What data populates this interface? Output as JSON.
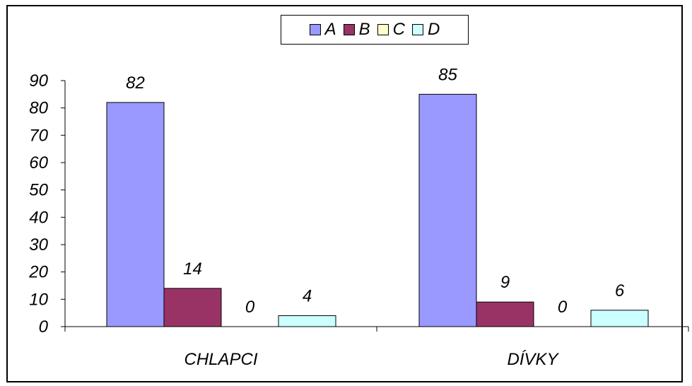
{
  "chart_data": {
    "type": "bar",
    "categories": [
      "CHLAPCI",
      "DÍVKY"
    ],
    "series": [
      {
        "name": "A",
        "values": [
          82,
          85
        ],
        "color": "#9999ff"
      },
      {
        "name": "B",
        "values": [
          14,
          9
        ],
        "color": "#993366"
      },
      {
        "name": "C",
        "values": [
          0,
          0
        ],
        "color": "#ffffcc"
      },
      {
        "name": "D",
        "values": [
          4,
          6
        ],
        "color": "#ccffff"
      }
    ],
    "yticks": [
      "0",
      "10",
      "20",
      "30",
      "40",
      "50",
      "60",
      "70",
      "80",
      "90"
    ],
    "ylim": [
      0,
      90
    ],
    "grid": false,
    "legend_position": "top-center",
    "data_labels": true
  }
}
